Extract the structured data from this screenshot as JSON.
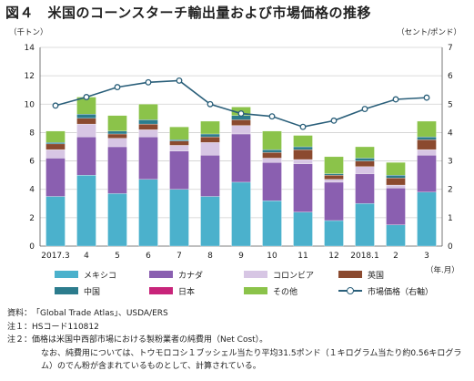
{
  "title": "図４　米国のコーンスターチ輸出量および市場価格の推移",
  "unit_left": "（千トン）",
  "unit_right": "（セント/ポンド）",
  "x_unit": "（年.月）",
  "colors": {
    "mexico": "#4bb1cc",
    "canada": "#8a5fb0",
    "colombia": "#d7c6e4",
    "uk": "#8b4a2f",
    "china": "#2c7c8d",
    "japan": "#c8247a",
    "other": "#8bc34a",
    "price": "#2a5f7a"
  },
  "legend": [
    {
      "key": "mexico",
      "label": "メキシコ"
    },
    {
      "key": "canada",
      "label": "カナダ"
    },
    {
      "key": "colombia",
      "label": "コロンビア"
    },
    {
      "key": "uk",
      "label": "英国"
    },
    {
      "key": "china",
      "label": "中国"
    },
    {
      "key": "japan",
      "label": "日本"
    },
    {
      "key": "other",
      "label": "その他"
    },
    {
      "key": "price",
      "label": "市場価格（右軸）"
    }
  ],
  "chart_data": {
    "type": "bar",
    "stacked": true,
    "categories": [
      "2017.3",
      "4",
      "5",
      "6",
      "7",
      "8",
      "9",
      "10",
      "11",
      "12",
      "2018.1",
      "2",
      "3"
    ],
    "series": [
      {
        "key": "mexico",
        "name": "メキシコ",
        "values": [
          3.5,
          5.0,
          3.7,
          4.7,
          4.0,
          3.5,
          4.5,
          3.2,
          2.4,
          1.8,
          3.0,
          1.5,
          3.8
        ]
      },
      {
        "key": "canada",
        "name": "カナダ",
        "values": [
          2.7,
          2.7,
          3.3,
          3.0,
          2.7,
          2.9,
          3.4,
          2.7,
          3.4,
          2.7,
          2.1,
          2.6,
          2.6
        ]
      },
      {
        "key": "colombia",
        "name": "コロンビア",
        "values": [
          0.6,
          0.9,
          0.6,
          0.5,
          0.4,
          0.9,
          0.6,
          0.3,
          0.3,
          0.2,
          0.5,
          0.2,
          0.4
        ]
      },
      {
        "key": "uk",
        "name": "英国",
        "values": [
          0.4,
          0.4,
          0.3,
          0.4,
          0.3,
          0.4,
          0.4,
          0.4,
          0.7,
          0.3,
          0.4,
          0.5,
          0.7
        ]
      },
      {
        "key": "china",
        "name": "中国",
        "values": [
          0.1,
          0.3,
          0.2,
          0.3,
          0.1,
          0.2,
          0.3,
          0.2,
          0.2,
          0.1,
          0.2,
          0.2,
          0.2
        ]
      },
      {
        "key": "japan",
        "name": "日本",
        "values": [
          0,
          0,
          0,
          0,
          0,
          0,
          0,
          0,
          0,
          0,
          0,
          0,
          0
        ]
      },
      {
        "key": "other",
        "name": "その他",
        "values": [
          0.8,
          1.2,
          1.1,
          1.1,
          0.9,
          0.9,
          0.6,
          1.3,
          0.8,
          1.2,
          0.8,
          0.9,
          1.1
        ]
      }
    ],
    "line": {
      "key": "price",
      "name": "市場価格（右軸）",
      "values": [
        4.95,
        5.25,
        5.6,
        5.77,
        5.83,
        5.0,
        4.67,
        4.57,
        4.2,
        4.42,
        4.83,
        5.17,
        5.23
      ]
    },
    "ylim_left": [
      0,
      14
    ],
    "yticks_left": [
      0,
      2,
      4,
      6,
      8,
      10,
      12,
      14
    ],
    "ylim_right": [
      0,
      7
    ],
    "yticks_right": [
      0,
      1,
      2,
      3,
      4,
      5,
      6,
      7
    ],
    "grid": true,
    "legend_position": "bottom"
  },
  "notes": [
    {
      "head": "資料：",
      "body": "「Global Trade Atlas」、USDA/ERS"
    },
    {
      "head": "注１：",
      "body": "HSコード110812"
    },
    {
      "head": "注２：",
      "body": "価格は米国中西部市場における製粉業者の純費用（Net Cost）。"
    },
    {
      "head": "",
      "body": "なお、純費用については、トウモロコシ１ブッシェル当たり平均31.5ポンド（１キログラム当たり約0.56キログラム）のでん粉が含まれているものとして、計算されている。"
    }
  ]
}
